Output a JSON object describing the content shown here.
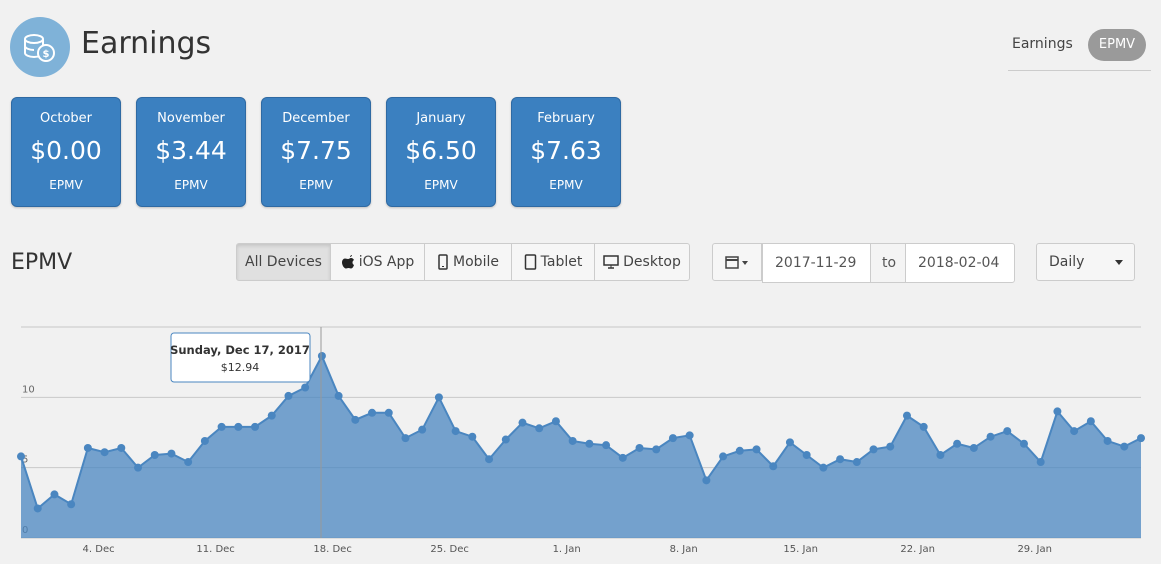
{
  "header": {
    "title": "Earnings"
  },
  "tabs": [
    "Earnings",
    "EPMV"
  ],
  "cards": [
    {
      "month": "October",
      "amount": "$0.00",
      "unit": "EPMV"
    },
    {
      "month": "November",
      "amount": "$3.44",
      "unit": "EPMV"
    },
    {
      "month": "December",
      "amount": "$7.75",
      "unit": "EPMV"
    },
    {
      "month": "January",
      "amount": "$6.50",
      "unit": "EPMV"
    },
    {
      "month": "February",
      "amount": "$7.63",
      "unit": "EPMV"
    }
  ],
  "section": {
    "title": "EPMV"
  },
  "devices": [
    "All Devices",
    "iOS App",
    "Mobile",
    "Tablet",
    "Desktop"
  ],
  "date_range": {
    "from": "2017-11-29",
    "separator": "to",
    "to": "2018-02-04"
  },
  "interval": "Daily",
  "chart_data": {
    "type": "area",
    "categories": [
      null,
      null,
      null,
      null,
      null,
      "4. Dec",
      null,
      null,
      null,
      null,
      null,
      null,
      "11. Dec",
      null,
      null,
      null,
      null,
      null,
      null,
      "18. Dec",
      null,
      null,
      null,
      null,
      null,
      null,
      "25. Dec",
      null,
      null,
      null,
      null,
      null,
      null,
      "1. Jan",
      null,
      null,
      null,
      null,
      null,
      null,
      "8. Jan",
      null,
      null,
      null,
      null,
      null,
      null,
      "15. Jan",
      null,
      null,
      null,
      null,
      null,
      null,
      "22. Jan",
      null,
      null,
      null,
      null,
      null,
      null,
      "29. Jan",
      null,
      null,
      null,
      null,
      null,
      null
    ],
    "values": [
      5.8,
      2.1,
      3.1,
      2.4,
      6.4,
      6.1,
      6.4,
      5.0,
      5.9,
      6.0,
      5.4,
      6.9,
      7.9,
      7.9,
      7.9,
      8.7,
      10.1,
      10.7,
      12.94,
      10.1,
      8.4,
      8.9,
      8.9,
      7.1,
      7.7,
      10.0,
      7.6,
      7.2,
      5.6,
      7.0,
      8.2,
      7.8,
      8.3,
      6.9,
      6.7,
      6.6,
      5.7,
      6.4,
      6.3,
      7.1,
      7.3,
      4.1,
      5.8,
      6.2,
      6.3,
      5.1,
      6.8,
      5.9,
      5.0,
      5.6,
      5.4,
      6.3,
      6.5,
      8.7,
      7.9,
      5.9,
      6.7,
      6.4,
      7.2,
      7.6,
      6.7,
      5.4,
      9.0,
      7.6,
      8.3,
      6.9,
      6.5,
      7.1
    ],
    "ylim": [
      0,
      15
    ],
    "yticks": [
      0,
      5,
      10
    ],
    "grid": true,
    "color": "#4a86c0",
    "tooltip": {
      "title": "Sunday, Dec 17, 2017",
      "label": "$12.94"
    }
  }
}
